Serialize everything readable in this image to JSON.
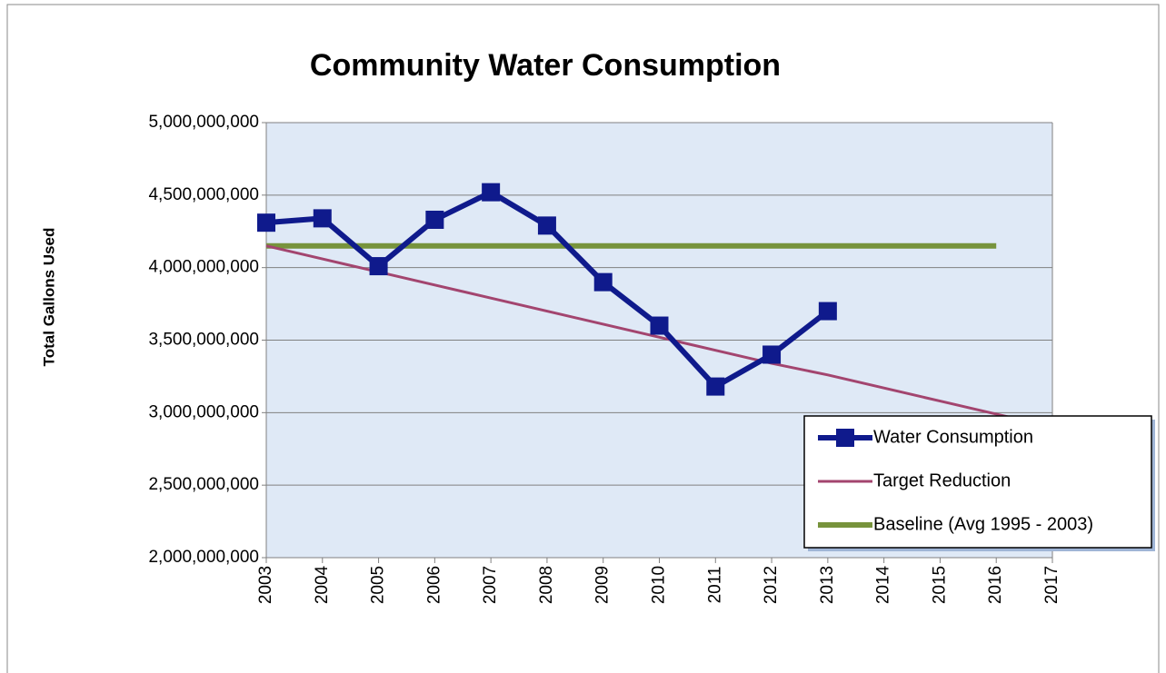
{
  "chart_data": {
    "type": "line",
    "title": "Community Water Consumption",
    "y_label": "Total Gallons Used",
    "categories": [
      "2003",
      "2004",
      "2005",
      "2006",
      "2007",
      "2008",
      "2009",
      "2010",
      "2011",
      "2012",
      "2013",
      "2014",
      "2015",
      "2016",
      "2017"
    ],
    "series": [
      {
        "name": "Water Consumption",
        "color": "#0f1a8c",
        "marker": "square",
        "values": [
          4310000000,
          4340000000,
          4010000000,
          4330000000,
          4520000000,
          4290000000,
          3900000000,
          3600000000,
          3180000000,
          3400000000,
          3700000000,
          null,
          null,
          null,
          null
        ]
      },
      {
        "name": "Target Reduction",
        "color": "#a3456f",
        "marker": null,
        "values": [
          4150000000,
          4060000000,
          3970000000,
          3880000000,
          3790000000,
          3700000000,
          3610000000,
          3520000000,
          3430000000,
          3340000000,
          3260000000,
          3170000000,
          3080000000,
          2990000000,
          2900000000
        ]
      },
      {
        "name": "Baseline (Avg 1995 - 2003)",
        "color": "#77933c",
        "marker": null,
        "values": [
          4150000000,
          4150000000,
          4150000000,
          4150000000,
          4150000000,
          4150000000,
          4150000000,
          4150000000,
          4150000000,
          4150000000,
          4150000000,
          4150000000,
          4150000000,
          4150000000,
          null
        ]
      }
    ],
    "ylim": [
      2000000000,
      5000000000
    ],
    "yticks": [
      {
        "value": 2000000000,
        "label": "2,000,000,000"
      },
      {
        "value": 2500000000,
        "label": "2,500,000,000"
      },
      {
        "value": 3000000000,
        "label": "3,000,000,000"
      },
      {
        "value": 3500000000,
        "label": "3,500,000,000"
      },
      {
        "value": 4000000000,
        "label": "4,000,000,000"
      },
      {
        "value": 4500000000,
        "label": "4,500,000,000"
      },
      {
        "value": 5000000000,
        "label": "5,000,000,000"
      }
    ],
    "grid": true,
    "legend": "lower right"
  }
}
